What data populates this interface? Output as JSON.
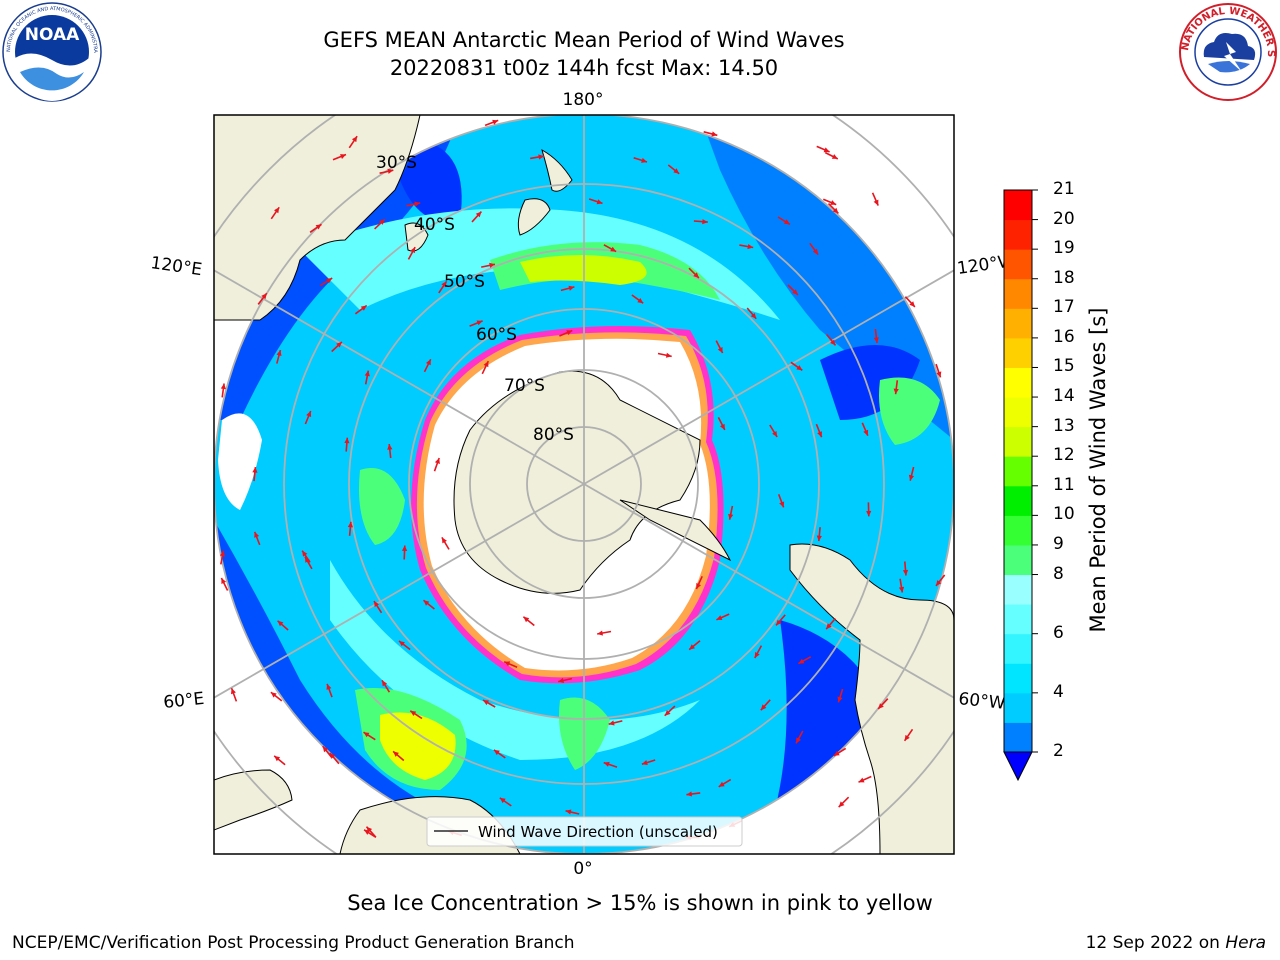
{
  "title": {
    "line1": "GEFS MEAN Antarctic Mean Period of Wind Waves",
    "line2": "20220831 t00z 144h fcst   Max: 14.50"
  },
  "logos": {
    "noaa": "NOAA",
    "noaa_ring": "NATIONAL OCEANIC AND ATMOSPHERIC ADMINISTRATION · U.S. DEPARTMENT OF COMMERCE",
    "nws_ring": "NATIONAL WEATHER SERVICE"
  },
  "map": {
    "projection": "south-polar-stereographic",
    "longitude_labels": [
      "180°",
      "0°",
      "120°E",
      "60°E",
      "120°W",
      "60°W"
    ],
    "latitude_labels": [
      "30°S",
      "40°S",
      "50°S",
      "60°S",
      "70°S",
      "80°S"
    ],
    "legend_entry": "Wind Wave Direction (unscaled)",
    "arrow_color": "#e8141e",
    "sea_ice_edge_color": "#ff33cc",
    "land_color": "#efefdb"
  },
  "colorbar": {
    "label": "Mean Period of Wind Waves [s]",
    "ticks": [
      "21",
      "20",
      "19",
      "18",
      "17",
      "16",
      "15",
      "14",
      "13",
      "12",
      "11",
      "10",
      "9",
      "8",
      "7",
      "6",
      "5",
      "4",
      "3",
      "2"
    ],
    "tick_labels": [
      "21",
      "20",
      "19",
      "18",
      "17",
      "16",
      "15",
      "14",
      "13",
      "12",
      "11",
      "10",
      "9",
      "8",
      "6",
      "4",
      "2"
    ],
    "levels": [
      2,
      3,
      4,
      5,
      6,
      7,
      8,
      9,
      10,
      11,
      12,
      13,
      14,
      15,
      16,
      17,
      18,
      19,
      20,
      21
    ],
    "colors": [
      "#0033ff",
      "#0080ff",
      "#00ccff",
      "#00e5ff",
      "#33f5ff",
      "#66ffff",
      "#99ffff",
      "#4cff7a",
      "#33ff33",
      "#00ee00",
      "#66ff00",
      "#ccff00",
      "#eeff00",
      "#ffff00",
      "#ffd000",
      "#ffb000",
      "#ff8800",
      "#ff5500",
      "#ff2200",
      "#ff0000"
    ],
    "under_color": "#0000ff",
    "extend": "min"
  },
  "note": "Sea Ice Concentration > 15% is shown in pink to yellow",
  "footer": {
    "left": "NCEP/EMC/Verification Post Processing Product Generation Branch",
    "right_prefix": "12 Sep 2022 on ",
    "right_machine": "Hera"
  }
}
